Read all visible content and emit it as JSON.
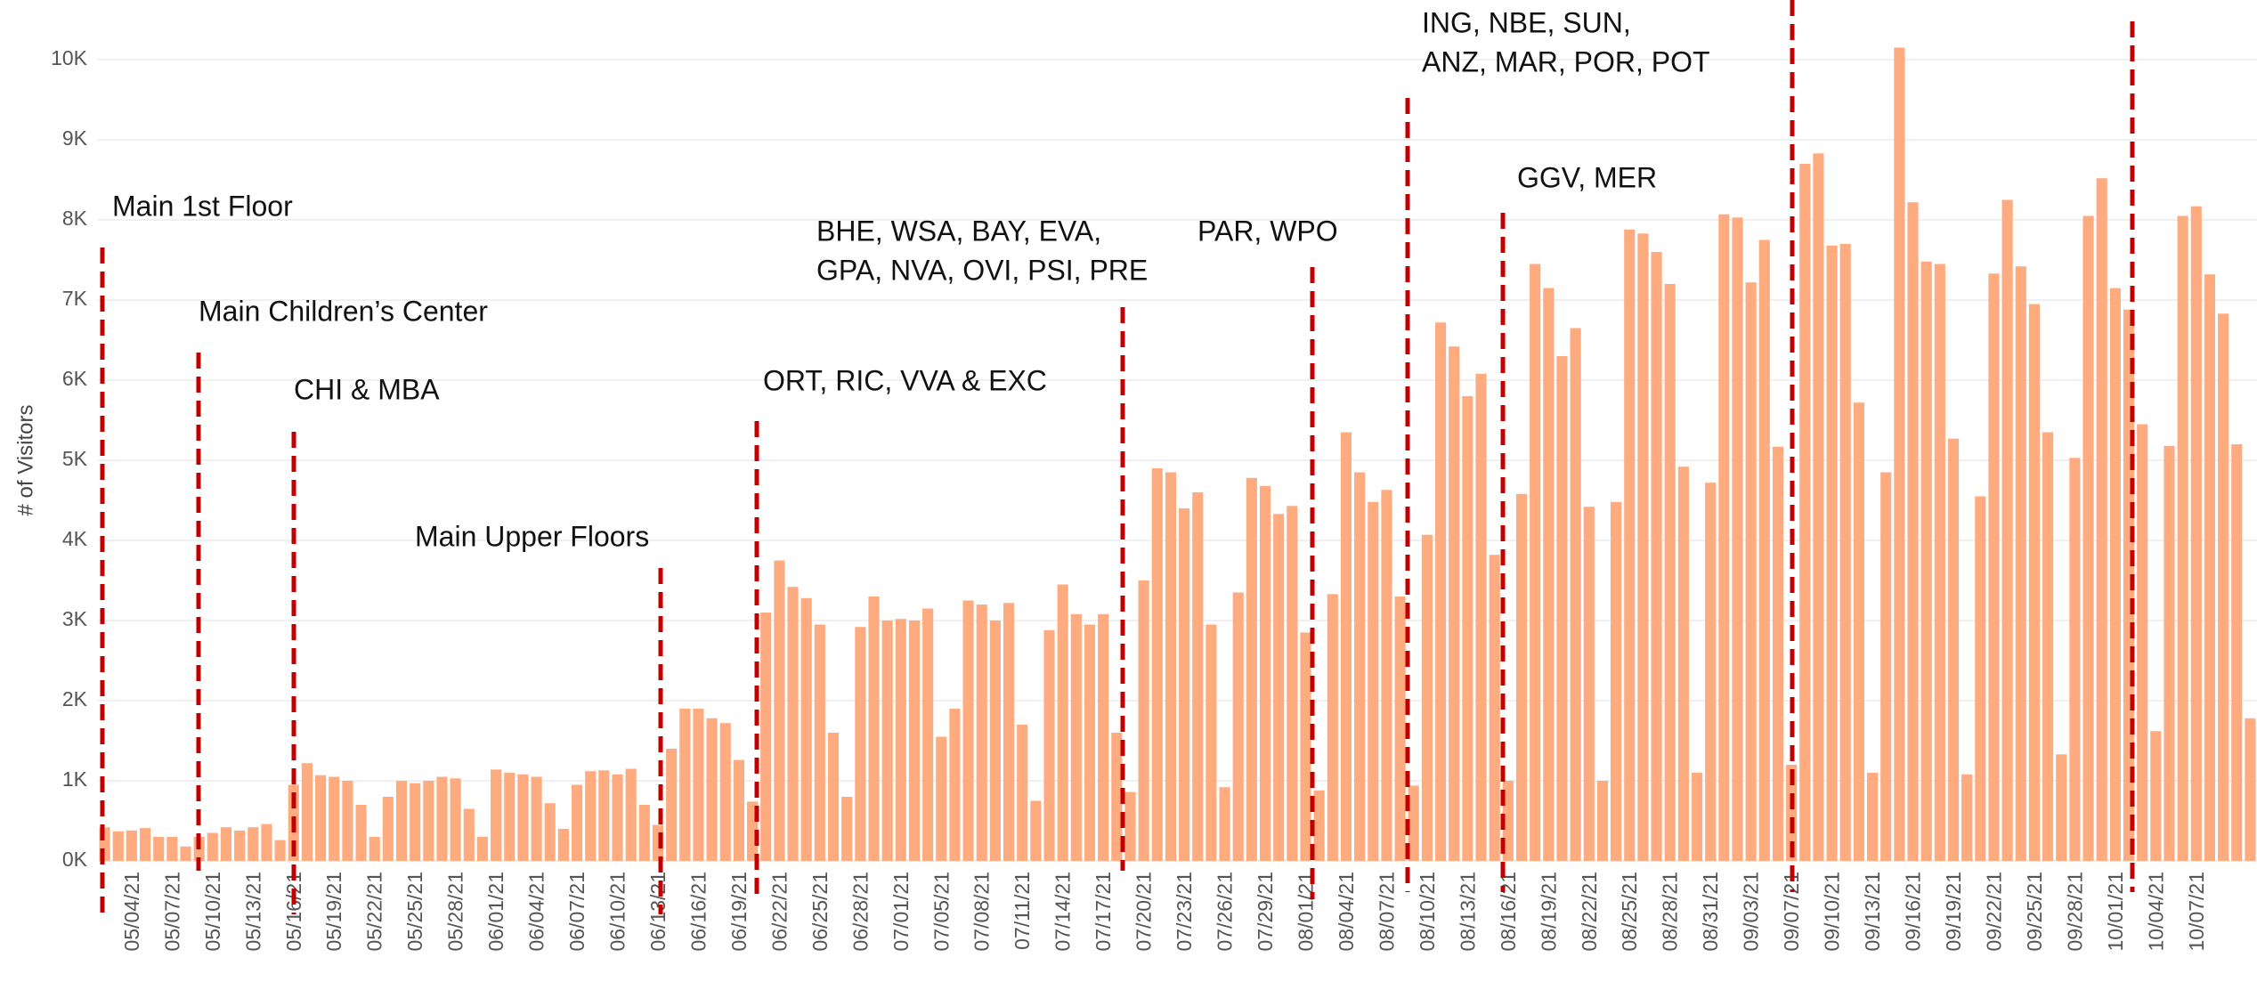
{
  "chart_data": {
    "type": "bar",
    "y_label": "# of Visitors",
    "color": "#ffab80",
    "grid": true,
    "ylim": [
      0,
      10600
    ],
    "yticks": [
      {
        "value": 0,
        "label": "0K"
      },
      {
        "value": 1000,
        "label": "1K"
      },
      {
        "value": 2000,
        "label": "2K"
      },
      {
        "value": 3000,
        "label": "3K"
      },
      {
        "value": 4000,
        "label": "4K"
      },
      {
        "value": 5000,
        "label": "5K"
      },
      {
        "value": 6000,
        "label": "6K"
      },
      {
        "value": 7000,
        "label": "7K"
      },
      {
        "value": 8000,
        "label": "8K"
      },
      {
        "value": 9000,
        "label": "9K"
      },
      {
        "value": 10000,
        "label": "10K"
      }
    ],
    "categories": [
      null,
      null,
      "05/04/21",
      null,
      null,
      "05/07/21",
      null,
      null,
      "05/10/21",
      null,
      null,
      "05/13/21",
      null,
      null,
      "05/16/21",
      null,
      null,
      "05/19/21",
      null,
      null,
      "05/22/21",
      null,
      null,
      "05/25/21",
      null,
      null,
      "05/28/21",
      null,
      null,
      "06/01/21",
      null,
      null,
      "06/04/21",
      null,
      null,
      "06/07/21",
      null,
      null,
      "06/10/21",
      null,
      null,
      "06/13/21",
      null,
      null,
      "06/16/21",
      null,
      null,
      "06/19/21",
      null,
      null,
      "06/22/21",
      null,
      null,
      "06/25/21",
      null,
      null,
      "06/28/21",
      null,
      null,
      "07/01/21",
      null,
      null,
      "07/05/21",
      null,
      null,
      "07/08/21",
      null,
      null,
      "07/11/21",
      null,
      null,
      "07/14/21",
      null,
      null,
      "07/17/21",
      null,
      null,
      "07/20/21",
      null,
      null,
      "07/23/21",
      null,
      null,
      "07/26/21",
      null,
      null,
      "07/29/21",
      null,
      null,
      "08/01/21",
      null,
      null,
      "08/04/21",
      null,
      null,
      "08/07/21",
      null,
      null,
      "08/10/21",
      null,
      null,
      "08/13/21",
      null,
      null,
      "08/16/21",
      null,
      null,
      "08/19/21",
      null,
      null,
      "08/22/21",
      null,
      null,
      "08/25/21",
      null,
      null,
      "08/28/21",
      null,
      null,
      "08/31/21",
      null,
      null,
      "09/03/21",
      null,
      null,
      "09/07/21",
      null,
      null,
      "09/10/21",
      null,
      null,
      "09/13/21",
      null,
      null,
      "09/16/21",
      null,
      null,
      "09/19/21",
      null,
      null,
      "09/22/21",
      null,
      null,
      "09/25/21",
      null,
      null,
      "09/28/21",
      null,
      null,
      "10/01/21",
      null,
      null,
      "10/04/21",
      null,
      null,
      "10/07/21",
      null,
      null,
      null,
      null
    ],
    "values": [
      420,
      370,
      380,
      410,
      300,
      300,
      180,
      300,
      350,
      420,
      380,
      420,
      460,
      260,
      950,
      1220,
      1070,
      1050,
      1000,
      700,
      300,
      800,
      1000,
      970,
      1000,
      1050,
      1030,
      650,
      300,
      1140,
      1100,
      1080,
      1050,
      720,
      400,
      950,
      1120,
      1130,
      1080,
      1150,
      700,
      450,
      1400,
      1900,
      1900,
      1780,
      1720,
      1260,
      740,
      3100,
      3750,
      3420,
      3280,
      2950,
      1600,
      800,
      2920,
      3300,
      3000,
      3020,
      3000,
      3150,
      1550,
      1900,
      3250,
      3200,
      3000,
      3220,
      1700,
      750,
      2880,
      3450,
      3080,
      2950,
      3080,
      1600,
      860,
      3500,
      4900,
      4850,
      4400,
      4600,
      2950,
      920,
      3350,
      4780,
      4680,
      4330,
      4430,
      2850,
      880,
      3330,
      5350,
      4850,
      4480,
      4630,
      3300,
      940,
      4070,
      6720,
      6420,
      5800,
      6080,
      3820,
      1000,
      4580,
      7450,
      7150,
      6300,
      6650,
      4420,
      1000,
      4480,
      7880,
      7830,
      7600,
      7200,
      4920,
      1100,
      4720,
      8070,
      8030,
      7220,
      7750,
      5170,
      1200,
      8700,
      8830,
      7680,
      7700,
      5720,
      1100,
      4850,
      10150,
      8220,
      7480,
      7450,
      5270,
      1080,
      4550,
      7330,
      8250,
      7420,
      6950,
      5350,
      1330,
      5030,
      8050,
      8520,
      7150,
      6880,
      5450,
      1620,
      5180,
      8050,
      8170,
      7320,
      6830,
      5200,
      1780
    ],
    "annotations": [
      {
        "lines": [
          "Main 1st Floor"
        ]
      },
      {
        "lines": [
          "Main Children’s Center"
        ]
      },
      {
        "lines": [
          "CHI & MBA"
        ]
      },
      {
        "lines": [
          "Main Upper Floors"
        ]
      },
      {
        "lines": [
          "ORT, RIC, VVA & EXC"
        ]
      },
      {
        "lines": [
          "BHE, WSA, BAY, EVA,",
          "GPA, NVA, OVI, PSI, PRE"
        ]
      },
      {
        "lines": [
          "PAR, WPO"
        ]
      },
      {
        "lines": [
          "ING, NBE, SUN,",
          "ANZ, MAR, POR, POT"
        ]
      },
      {
        "lines": [
          "GGV, MER"
        ]
      }
    ]
  }
}
